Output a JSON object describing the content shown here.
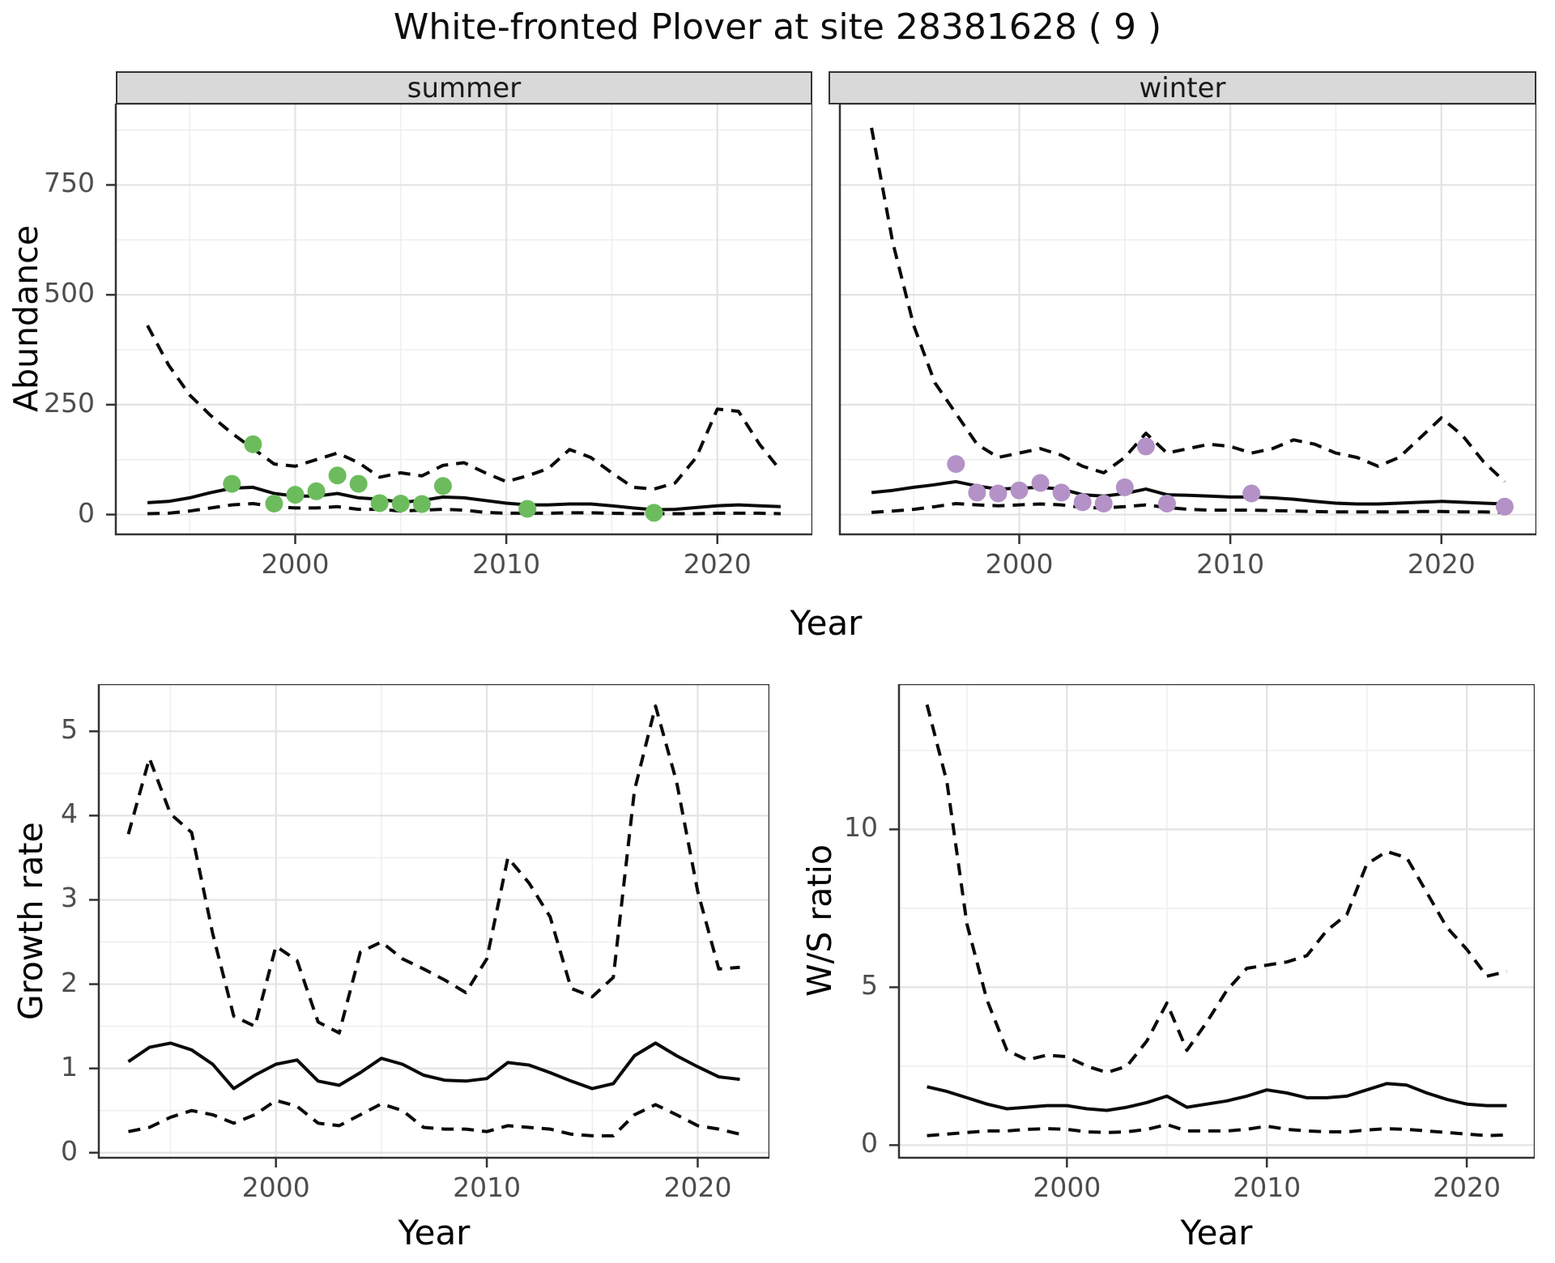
{
  "page": {
    "title": "White-fronted Plover at site 28381628 ( 9 )"
  },
  "axes": {
    "shared_x_label": "Year"
  },
  "colors": {
    "line": "#0a0a0a",
    "summer_point": "#6cbc5d",
    "winter_point": "#b492c7",
    "strip_bg": "#d9d9d9",
    "panel_border": "#333333",
    "grid_major": "#e3e3e3",
    "grid_minor": "#efefef",
    "tick_text": "#4d4d4d"
  },
  "chart_data": [
    {
      "id": "summer",
      "type": "line",
      "title": "summer",
      "xlabel": "Year",
      "ylabel": "Abundance",
      "xlim": [
        1991.5,
        2024.5
      ],
      "ylim": [
        -45,
        935
      ],
      "xticks": {
        "values": [
          2000,
          2010,
          2020
        ],
        "labels": [
          "2000",
          "2010",
          "2020"
        ]
      },
      "yticks": {
        "values": [
          0,
          250,
          500,
          750
        ],
        "labels": [
          "0",
          "250",
          "500",
          "750"
        ]
      },
      "xminor": [
        1995,
        2005,
        2015
      ],
      "yminor": [
        125,
        375,
        625,
        875
      ],
      "x": [
        1993,
        1994,
        1995,
        1996,
        1997,
        1998,
        1999,
        2000,
        2001,
        2002,
        2003,
        2004,
        2005,
        2006,
        2007,
        2008,
        2009,
        2010,
        2011,
        2012,
        2013,
        2014,
        2015,
        2016,
        2017,
        2018,
        2019,
        2020,
        2021,
        2022,
        2023
      ],
      "series": [
        {
          "name": "upper_ci",
          "style": "dashed",
          "y": [
            430,
            340,
            272,
            225,
            185,
            150,
            115,
            110,
            125,
            140,
            118,
            85,
            95,
            88,
            112,
            118,
            95,
            75,
            88,
            105,
            148,
            130,
            95,
            62,
            58,
            72,
            130,
            240,
            235,
            160,
            100
          ]
        },
        {
          "name": "estimate",
          "style": "solid",
          "y": [
            27,
            30,
            38,
            50,
            60,
            62,
            48,
            42,
            42,
            48,
            38,
            35,
            28,
            32,
            40,
            38,
            32,
            26,
            22,
            22,
            24,
            24,
            20,
            15,
            11,
            12,
            16,
            20,
            22,
            20,
            18
          ]
        },
        {
          "name": "lower_ci",
          "style": "dashed",
          "y": [
            2,
            3,
            8,
            15,
            22,
            25,
            18,
            15,
            15,
            18,
            12,
            12,
            8,
            10,
            12,
            10,
            5,
            3,
            3,
            3,
            4,
            4,
            3,
            2,
            2,
            2,
            2,
            3,
            3,
            3,
            2
          ]
        },
        {
          "name": "observed_counts",
          "style": "points",
          "color": "#6cbc5d",
          "px": [
            1997,
            1998,
            1999,
            2000,
            2001,
            2002,
            2003,
            2004,
            2005,
            2006,
            2007,
            2011,
            2017
          ],
          "py": [
            70,
            160,
            25,
            45,
            53,
            89,
            70,
            26,
            25,
            24,
            65,
            13,
            4
          ]
        }
      ]
    },
    {
      "id": "winter",
      "type": "line",
      "title": "winter",
      "xlabel": "Year",
      "ylabel": "Abundance",
      "xlim": [
        1991.5,
        2024.5
      ],
      "ylim": [
        -45,
        935
      ],
      "xticks": {
        "values": [
          2000,
          2010,
          2020
        ],
        "labels": [
          "2000",
          "2010",
          "2020"
        ]
      },
      "yticks": {
        "values": [
          0,
          250,
          500,
          750
        ],
        "labels": [
          "0",
          "250",
          "500",
          "750"
        ]
      },
      "xminor": [
        1995,
        2005,
        2015
      ],
      "yminor": [
        125,
        375,
        625,
        875
      ],
      "x": [
        1993,
        1994,
        1995,
        1996,
        1997,
        1998,
        1999,
        2000,
        2001,
        2002,
        2003,
        2004,
        2005,
        2006,
        2007,
        2008,
        2009,
        2010,
        2011,
        2012,
        2013,
        2014,
        2015,
        2016,
        2017,
        2018,
        2019,
        2020,
        2021,
        2022,
        2023
      ],
      "series": [
        {
          "name": "upper_ci",
          "style": "dashed",
          "y": [
            880,
            620,
            430,
            300,
            230,
            160,
            130,
            140,
            150,
            135,
            110,
            95,
            130,
            185,
            140,
            150,
            160,
            155,
            140,
            150,
            170,
            160,
            140,
            130,
            110,
            130,
            175,
            220,
            180,
            120,
            75
          ]
        },
        {
          "name": "estimate",
          "style": "solid",
          "y": [
            50,
            55,
            62,
            68,
            75,
            65,
            58,
            60,
            62,
            58,
            45,
            42,
            48,
            58,
            45,
            44,
            42,
            40,
            40,
            38,
            35,
            30,
            26,
            24,
            24,
            26,
            28,
            30,
            28,
            26,
            24
          ]
        },
        {
          "name": "lower_ci",
          "style": "dashed",
          "y": [
            5,
            8,
            12,
            18,
            25,
            22,
            20,
            22,
            24,
            22,
            16,
            15,
            18,
            22,
            16,
            12,
            10,
            10,
            10,
            9,
            8,
            7,
            6,
            6,
            6,
            6,
            7,
            7,
            6,
            6,
            5
          ]
        },
        {
          "name": "observed_counts",
          "style": "points",
          "color": "#b492c7",
          "px": [
            1997,
            1998,
            1999,
            2000,
            2001,
            2002,
            2003,
            2004,
            2005,
            2006,
            2007,
            2011,
            2023
          ],
          "py": [
            115,
            50,
            48,
            55,
            72,
            50,
            28,
            25,
            62,
            155,
            25,
            48,
            18
          ]
        }
      ]
    },
    {
      "id": "growth_rate",
      "type": "line",
      "title": "",
      "xlabel": "Year",
      "ylabel": "Growth rate",
      "xlim": [
        1991.6,
        2023.4
      ],
      "ylim": [
        -0.06,
        5.56
      ],
      "xticks": {
        "values": [
          2000,
          2010,
          2020
        ],
        "labels": [
          "2000",
          "2010",
          "2020"
        ]
      },
      "yticks": {
        "values": [
          0,
          1,
          2,
          3,
          4,
          5
        ],
        "labels": [
          "0",
          "1",
          "2",
          "3",
          "4",
          "5"
        ]
      },
      "xminor": [
        1995,
        2005,
        2015
      ],
      "yminor": [
        0.5,
        1.5,
        2.5,
        3.5,
        4.5
      ],
      "x": [
        1993,
        1994,
        1995,
        1996,
        1997,
        1998,
        1999,
        2000,
        2001,
        2002,
        2003,
        2004,
        2005,
        2006,
        2007,
        2008,
        2009,
        2010,
        2011,
        2012,
        2013,
        2014,
        2015,
        2016,
        2017,
        2018,
        2019,
        2020,
        2021,
        2022
      ],
      "series": [
        {
          "name": "upper_ci",
          "style": "dashed",
          "y": [
            3.78,
            4.68,
            4.02,
            3.8,
            2.6,
            1.62,
            1.5,
            2.45,
            2.28,
            1.55,
            1.42,
            2.38,
            2.5,
            2.3,
            2.18,
            2.05,
            1.9,
            2.3,
            3.5,
            3.2,
            2.8,
            1.95,
            1.85,
            2.08,
            4.3,
            5.3,
            4.4,
            3.1,
            2.18,
            2.2
          ]
        },
        {
          "name": "estimate",
          "style": "solid",
          "y": [
            1.08,
            1.25,
            1.3,
            1.22,
            1.05,
            0.76,
            0.92,
            1.05,
            1.1,
            0.85,
            0.8,
            0.95,
            1.12,
            1.05,
            0.92,
            0.86,
            0.85,
            0.88,
            1.07,
            1.04,
            0.95,
            0.85,
            0.76,
            0.82,
            1.15,
            1.3,
            1.15,
            1.02,
            0.9,
            0.87
          ]
        },
        {
          "name": "lower_ci",
          "style": "dashed",
          "y": [
            0.25,
            0.3,
            0.42,
            0.5,
            0.45,
            0.35,
            0.45,
            0.62,
            0.55,
            0.35,
            0.32,
            0.45,
            0.58,
            0.5,
            0.3,
            0.28,
            0.28,
            0.25,
            0.32,
            0.3,
            0.28,
            0.22,
            0.2,
            0.2,
            0.45,
            0.57,
            0.45,
            0.32,
            0.28,
            0.22
          ]
        }
      ]
    },
    {
      "id": "ws_ratio",
      "type": "line",
      "title": "",
      "xlabel": "Year",
      "ylabel": "W/S ratio",
      "xlim": [
        1991.6,
        2023.4
      ],
      "ylim": [
        -0.4,
        14.6
      ],
      "xticks": {
        "values": [
          2000,
          2010,
          2020
        ],
        "labels": [
          "2000",
          "2010",
          "2020"
        ]
      },
      "yticks": {
        "values": [
          0,
          5,
          10
        ],
        "labels": [
          "0",
          "5",
          "10"
        ]
      },
      "xminor": [
        1995,
        2005,
        2015
      ],
      "yminor": [
        2.5,
        7.5,
        12.5
      ],
      "x": [
        1993,
        1994,
        1995,
        1996,
        1997,
        1998,
        1999,
        2000,
        2001,
        2002,
        2003,
        2004,
        2005,
        2006,
        2007,
        2008,
        2009,
        2010,
        2011,
        2012,
        2013,
        2014,
        2015,
        2016,
        2017,
        2018,
        2019,
        2020,
        2021,
        2022
      ],
      "series": [
        {
          "name": "upper_ci",
          "style": "dashed",
          "y": [
            13.95,
            11.5,
            7.0,
            4.6,
            3.0,
            2.7,
            2.85,
            2.8,
            2.5,
            2.3,
            2.5,
            3.3,
            4.5,
            3.0,
            3.9,
            4.9,
            5.6,
            5.7,
            5.8,
            6.0,
            6.8,
            7.3,
            8.9,
            9.3,
            9.1,
            8.0,
            6.9,
            6.2,
            5.35,
            5.5
          ]
        },
        {
          "name": "estimate",
          "style": "solid",
          "y": [
            1.85,
            1.7,
            1.5,
            1.3,
            1.15,
            1.2,
            1.25,
            1.25,
            1.15,
            1.1,
            1.2,
            1.35,
            1.55,
            1.2,
            1.3,
            1.4,
            1.55,
            1.75,
            1.65,
            1.5,
            1.5,
            1.55,
            1.75,
            1.95,
            1.9,
            1.65,
            1.45,
            1.3,
            1.25,
            1.25
          ]
        },
        {
          "name": "lower_ci",
          "style": "dashed",
          "y": [
            0.3,
            0.35,
            0.4,
            0.45,
            0.45,
            0.5,
            0.52,
            0.5,
            0.42,
            0.4,
            0.42,
            0.5,
            0.65,
            0.45,
            0.45,
            0.45,
            0.5,
            0.6,
            0.5,
            0.45,
            0.42,
            0.42,
            0.48,
            0.52,
            0.5,
            0.45,
            0.4,
            0.35,
            0.3,
            0.32
          ]
        }
      ]
    }
  ]
}
